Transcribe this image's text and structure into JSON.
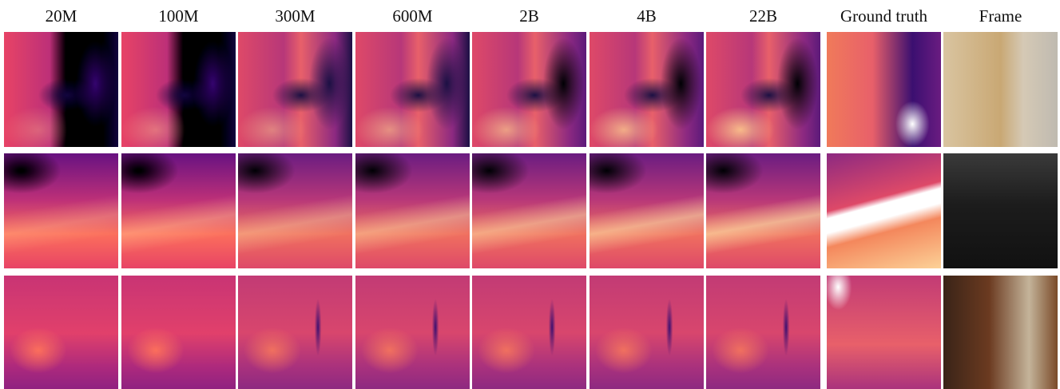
{
  "columns": [
    "20M",
    "100M",
    "300M",
    "600M",
    "2B",
    "4B",
    "22B",
    "Ground truth",
    "Frame"
  ]
}
